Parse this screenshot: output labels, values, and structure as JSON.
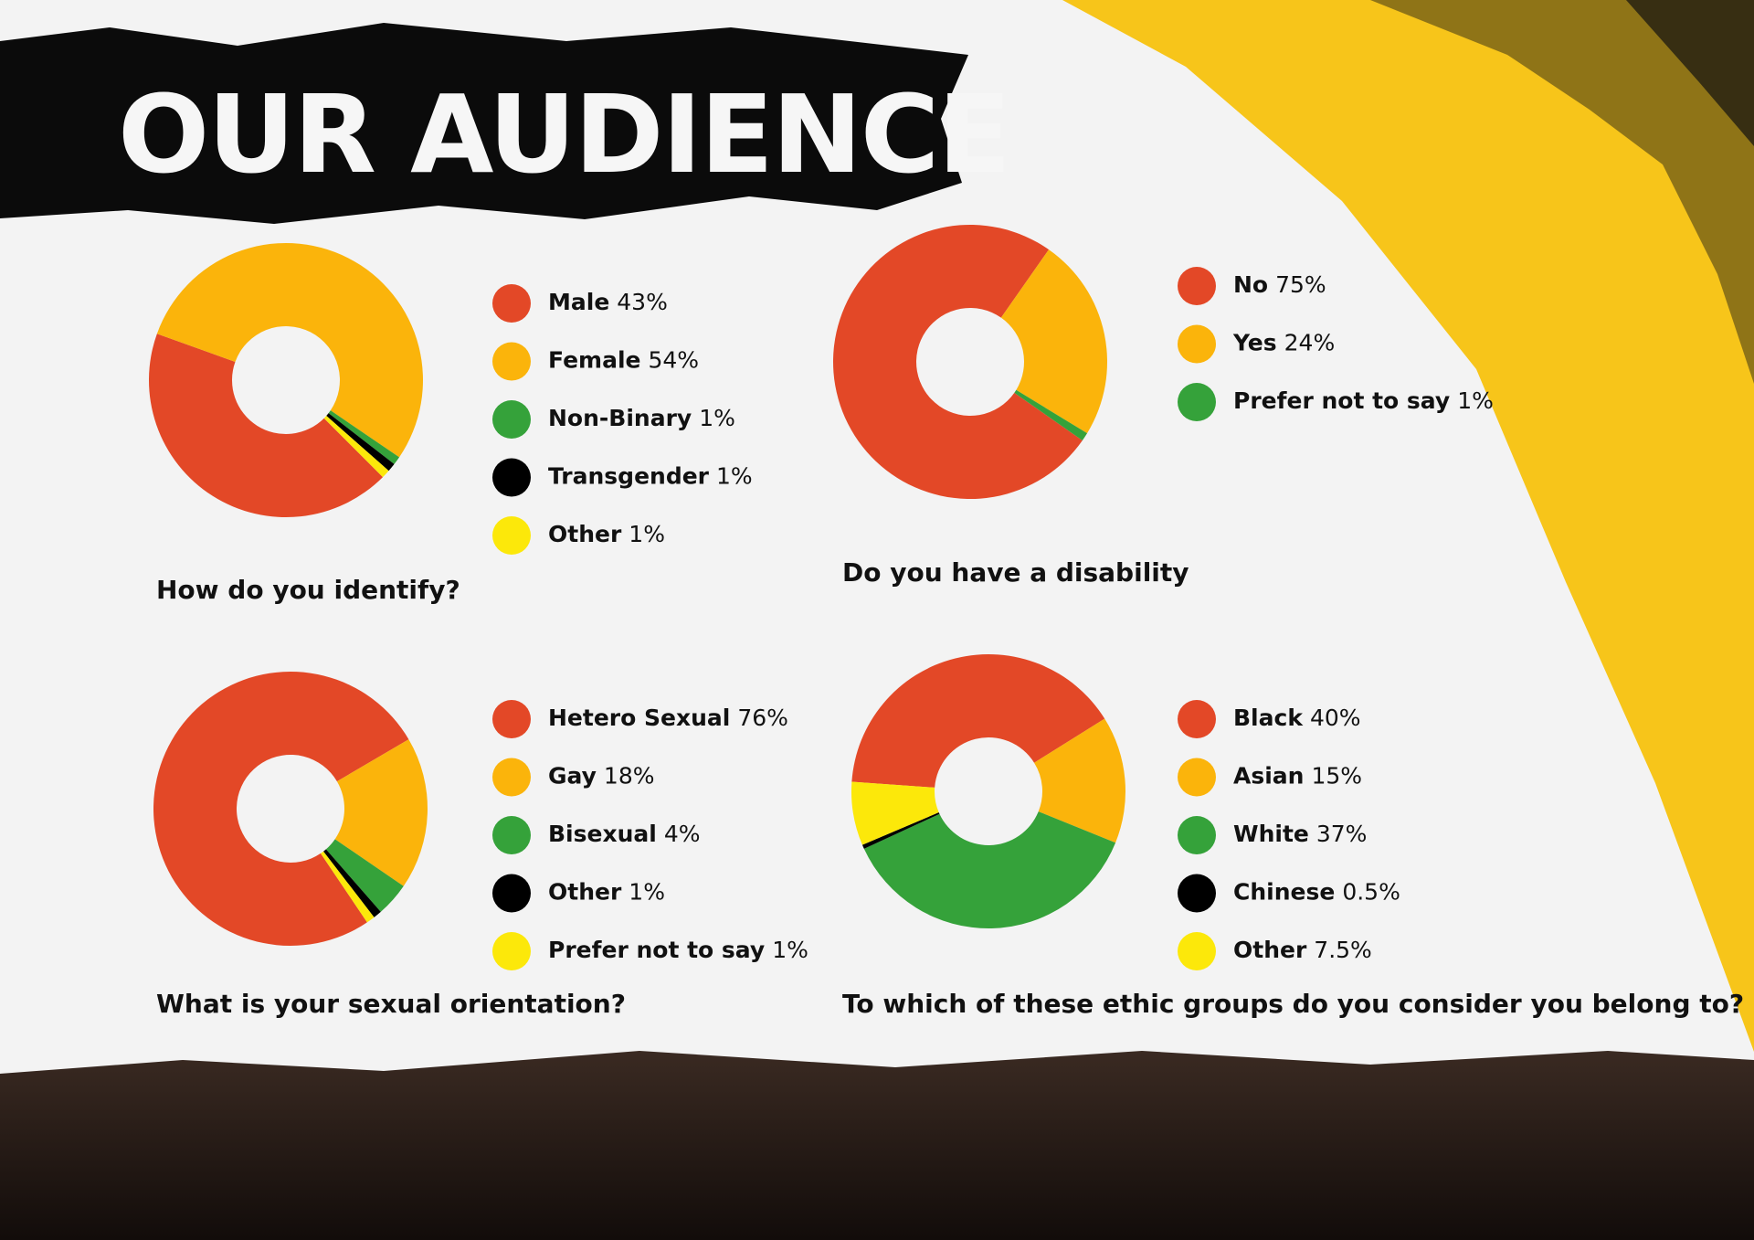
{
  "title": "OUR AUDIENCE",
  "chart_data": [
    {
      "type": "donut",
      "title": "How do you identify?",
      "categories": [
        "Male",
        "Female",
        "Non-Binary",
        "Transgender",
        "Other"
      ],
      "values": [
        43,
        54,
        1,
        1,
        1
      ],
      "value_labels": [
        "43%",
        "54%",
        "1%",
        "1%",
        "1%"
      ],
      "colors": [
        "#e34827",
        "#fbb40b",
        "#35a23a",
        "#000000",
        "#fce80a"
      ]
    },
    {
      "type": "donut",
      "title": "Do you have a disability",
      "categories": [
        "No",
        "Yes",
        "Prefer not to say"
      ],
      "values": [
        75,
        24,
        1
      ],
      "value_labels": [
        "75%",
        "24%",
        "1%"
      ],
      "colors": [
        "#e34827",
        "#fbb40b",
        "#35a23a"
      ]
    },
    {
      "type": "donut",
      "title": "What is your sexual orientation?",
      "categories": [
        "Hetero Sexual",
        "Gay",
        "Bisexual",
        "Other",
        "Prefer not to say"
      ],
      "values": [
        76,
        18,
        4,
        1,
        1
      ],
      "value_labels": [
        "76%",
        "18%",
        "4%",
        "1%",
        "1%"
      ],
      "colors": [
        "#e34827",
        "#fbb40b",
        "#35a23a",
        "#000000",
        "#fce80a"
      ]
    },
    {
      "type": "donut",
      "title": "To which of these ethic groups do you consider you belong to?",
      "categories": [
        "Black",
        "Asian",
        "White",
        "Chinese",
        "Other"
      ],
      "values": [
        40,
        15,
        37,
        0.5,
        7.5
      ],
      "value_labels": [
        "40%",
        "15%",
        "37%",
        "0.5%",
        "7.5%"
      ],
      "colors": [
        "#e34827",
        "#fbb40b",
        "#35a23a",
        "#000000",
        "#fce80a"
      ]
    }
  ]
}
